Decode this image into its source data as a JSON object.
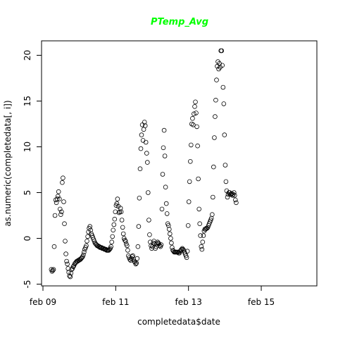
{
  "chart_data": {
    "type": "scatter",
    "title": "PTemp_Avg",
    "xlabel": "completedata$date",
    "ylabel": "as.numeric(completedata[, i])",
    "xlim": [
      9.0,
      16.75
    ],
    "ylim": [
      -5.2,
      21.5
    ],
    "x_ticks": [
      {
        "value": 9,
        "label": "feb 09"
      },
      {
        "value": 11,
        "label": "feb 11"
      },
      {
        "value": 13,
        "label": "feb 13"
      },
      {
        "value": 15,
        "label": "feb 15"
      }
    ],
    "y_ticks": [
      -5,
      0,
      5,
      10,
      15,
      20
    ],
    "title_color": "#00ff00",
    "grid": false,
    "points": [
      [
        9.23,
        -3.4
      ],
      [
        9.25,
        -3.6
      ],
      [
        9.27,
        -3.5
      ],
      [
        9.29,
        -3.4
      ],
      [
        9.31,
        -0.9
      ],
      [
        9.33,
        2.5
      ],
      [
        9.35,
        4.2
      ],
      [
        9.37,
        3.9
      ],
      [
        9.39,
        4.3
      ],
      [
        9.41,
        4.6
      ],
      [
        9.43,
        5.1
      ],
      [
        9.45,
        4.3
      ],
      [
        9.47,
        3.2
      ],
      [
        9.49,
        2.6
      ],
      [
        9.51,
        2.9
      ],
      [
        9.53,
        6.1
      ],
      [
        9.55,
        6.6
      ],
      [
        9.57,
        4.0
      ],
      [
        9.59,
        1.6
      ],
      [
        9.61,
        -0.3
      ],
      [
        9.63,
        -1.7
      ],
      [
        9.65,
        -2.5
      ],
      [
        9.67,
        -2.8
      ],
      [
        9.69,
        -3.3
      ],
      [
        9.71,
        -3.7
      ],
      [
        9.73,
        -4.1
      ],
      [
        9.75,
        -4.2
      ],
      [
        9.77,
        -3.8
      ],
      [
        9.79,
        -3.4
      ],
      [
        9.81,
        -3.3
      ],
      [
        9.83,
        -3.1
      ],
      [
        9.85,
        -3.0
      ],
      [
        9.87,
        -2.8
      ],
      [
        9.89,
        -2.7
      ],
      [
        9.91,
        -2.6
      ],
      [
        9.93,
        -2.5
      ],
      [
        9.95,
        -2.5
      ],
      [
        9.97,
        -2.4
      ],
      [
        9.99,
        -2.4
      ],
      [
        10.01,
        -2.3
      ],
      [
        10.03,
        -2.3
      ],
      [
        10.05,
        -2.2
      ],
      [
        10.07,
        -2.1
      ],
      [
        10.09,
        -2.0
      ],
      [
        10.11,
        -1.8
      ],
      [
        10.13,
        -1.5
      ],
      [
        10.15,
        -1.2
      ],
      [
        10.17,
        -1.0
      ],
      [
        10.19,
        -0.8
      ],
      [
        10.21,
        -0.3
      ],
      [
        10.23,
        0.2
      ],
      [
        10.25,
        0.7
      ],
      [
        10.27,
        1.1
      ],
      [
        10.29,
        1.3
      ],
      [
        10.31,
        0.9
      ],
      [
        10.33,
        0.5
      ],
      [
        10.35,
        0.3
      ],
      [
        10.37,
        0.1
      ],
      [
        10.39,
        -0.1
      ],
      [
        10.41,
        -0.3
      ],
      [
        10.43,
        -0.5
      ],
      [
        10.45,
        -0.6
      ],
      [
        10.47,
        -0.7
      ],
      [
        10.49,
        -0.8
      ],
      [
        10.51,
        -0.8
      ],
      [
        10.53,
        -0.9
      ],
      [
        10.55,
        -0.9
      ],
      [
        10.57,
        -1.0
      ],
      [
        10.59,
        -1.0
      ],
      [
        10.61,
        -1.0
      ],
      [
        10.63,
        -1.1
      ],
      [
        10.65,
        -1.1
      ],
      [
        10.67,
        -1.1
      ],
      [
        10.69,
        -1.2
      ],
      [
        10.71,
        -1.2
      ],
      [
        10.73,
        -1.2
      ],
      [
        10.75,
        -1.3
      ],
      [
        10.77,
        -1.3
      ],
      [
        10.79,
        -1.3
      ],
      [
        10.81,
        -1.3
      ],
      [
        10.83,
        -1.2
      ],
      [
        10.85,
        -1.1
      ],
      [
        10.87,
        -0.9
      ],
      [
        10.89,
        -0.4
      ],
      [
        10.91,
        0.2
      ],
      [
        10.93,
        0.9
      ],
      [
        10.95,
        1.5
      ],
      [
        10.97,
        2.1
      ],
      [
        10.99,
        2.9
      ],
      [
        11.01,
        3.6
      ],
      [
        11.03,
        3.8
      ],
      [
        11.05,
        4.3
      ],
      [
        11.07,
        3.5
      ],
      [
        11.09,
        2.8
      ],
      [
        11.11,
        2.9
      ],
      [
        11.13,
        3.3
      ],
      [
        11.15,
        2.9
      ],
      [
        11.17,
        2.0
      ],
      [
        11.19,
        1.2
      ],
      [
        11.21,
        0.5
      ],
      [
        11.23,
        0.0
      ],
      [
        11.25,
        -0.2
      ],
      [
        11.27,
        -0.3
      ],
      [
        11.29,
        -0.6
      ],
      [
        11.31,
        -0.8
      ],
      [
        11.33,
        -1.3
      ],
      [
        11.35,
        -1.9
      ],
      [
        11.37,
        -2.1
      ],
      [
        11.39,
        -2.3
      ],
      [
        11.41,
        -2.4
      ],
      [
        11.43,
        -2.2
      ],
      [
        11.45,
        -2.0
      ],
      [
        11.47,
        -1.9
      ],
      [
        11.49,
        -2.3
      ],
      [
        11.51,
        -2.5
      ],
      [
        11.53,
        -2.6
      ],
      [
        11.55,
        -2.8
      ],
      [
        11.57,
        -2.7
      ],
      [
        11.59,
        -2.2
      ],
      [
        11.61,
        -0.9
      ],
      [
        11.63,
        1.3
      ],
      [
        11.65,
        4.4
      ],
      [
        11.67,
        7.6
      ],
      [
        11.69,
        9.8
      ],
      [
        11.71,
        11.3
      ],
      [
        11.73,
        12.4
      ],
      [
        11.75,
        10.7
      ],
      [
        11.77,
        11.9
      ],
      [
        11.79,
        12.7
      ],
      [
        11.81,
        12.3
      ],
      [
        11.83,
        10.5
      ],
      [
        11.85,
        9.3
      ],
      [
        11.87,
        8.3
      ],
      [
        11.89,
        5.0
      ],
      [
        11.91,
        2.0
      ],
      [
        11.93,
        0.4
      ],
      [
        11.95,
        -0.4
      ],
      [
        11.97,
        -0.8
      ],
      [
        11.99,
        -1.1
      ],
      [
        12.01,
        -0.9
      ],
      [
        12.03,
        -0.5
      ],
      [
        12.05,
        -0.3
      ],
      [
        12.07,
        -0.6
      ],
      [
        12.09,
        -1.1
      ],
      [
        12.11,
        -0.9
      ],
      [
        12.13,
        -0.6
      ],
      [
        12.15,
        -0.4
      ],
      [
        12.17,
        -0.5
      ],
      [
        12.19,
        -0.6
      ],
      [
        12.21,
        -0.8
      ],
      [
        12.23,
        -0.9
      ],
      [
        12.25,
        -0.7
      ],
      [
        12.27,
        3.2
      ],
      [
        12.29,
        7.0
      ],
      [
        12.31,
        9.9
      ],
      [
        12.33,
        11.8
      ],
      [
        12.35,
        9.0
      ],
      [
        12.37,
        5.6
      ],
      [
        12.39,
        3.8
      ],
      [
        12.41,
        2.7
      ],
      [
        12.43,
        1.6
      ],
      [
        12.45,
        1.4
      ],
      [
        12.47,
        1.0
      ],
      [
        12.49,
        0.5
      ],
      [
        12.51,
        0.0
      ],
      [
        12.53,
        -0.5
      ],
      [
        12.55,
        -1.0
      ],
      [
        12.57,
        -1.3
      ],
      [
        12.59,
        -1.4
      ],
      [
        12.61,
        -1.5
      ],
      [
        12.63,
        -1.5
      ],
      [
        12.65,
        -1.5
      ],
      [
        12.67,
        -1.5
      ],
      [
        12.69,
        -1.5
      ],
      [
        12.71,
        -1.5
      ],
      [
        12.73,
        -1.6
      ],
      [
        12.75,
        -1.6
      ],
      [
        12.77,
        -1.4
      ],
      [
        12.79,
        -1.3
      ],
      [
        12.81,
        -1.2
      ],
      [
        12.83,
        -1.1
      ],
      [
        12.85,
        -1.2
      ],
      [
        12.87,
        -1.3
      ],
      [
        12.89,
        -1.5
      ],
      [
        12.91,
        -1.7
      ],
      [
        12.93,
        -1.9
      ],
      [
        12.95,
        -2.1
      ],
      [
        12.97,
        -1.4
      ],
      [
        12.99,
        1.4
      ],
      [
        13.01,
        4.0
      ],
      [
        13.03,
        6.2
      ],
      [
        13.05,
        8.4
      ],
      [
        13.07,
        10.2
      ],
      [
        13.09,
        12.5
      ],
      [
        13.11,
        13.1
      ],
      [
        13.13,
        12.4
      ],
      [
        13.15,
        13.6
      ],
      [
        13.17,
        14.4
      ],
      [
        13.19,
        14.9
      ],
      [
        13.21,
        13.7
      ],
      [
        13.23,
        12.2
      ],
      [
        13.25,
        10.1
      ],
      [
        13.27,
        6.5
      ],
      [
        13.29,
        3.2
      ],
      [
        13.31,
        1.6
      ],
      [
        13.33,
        0.3
      ],
      [
        13.35,
        -0.9
      ],
      [
        13.37,
        -1.2
      ],
      [
        13.39,
        -0.4
      ],
      [
        13.41,
        0.3
      ],
      [
        13.43,
        0.8
      ],
      [
        13.45,
        1.0
      ],
      [
        13.47,
        1.0
      ],
      [
        13.49,
        1.1
      ],
      [
        13.51,
        1.1
      ],
      [
        13.53,
        1.2
      ],
      [
        13.55,
        1.4
      ],
      [
        13.57,
        1.6
      ],
      [
        13.59,
        1.8
      ],
      [
        13.61,
        2.0
      ],
      [
        13.63,
        2.2
      ],
      [
        13.65,
        2.6
      ],
      [
        13.67,
        4.5
      ],
      [
        13.69,
        7.8
      ],
      [
        13.71,
        11.0
      ],
      [
        13.73,
        13.3
      ],
      [
        13.75,
        15.1
      ],
      [
        13.77,
        17.3
      ],
      [
        13.79,
        18.8
      ],
      [
        13.81,
        19.3
      ],
      [
        13.83,
        18.5
      ],
      [
        13.85,
        19.1
      ],
      [
        13.87,
        18.7
      ],
      [
        13.89,
        20.5
      ],
      [
        13.91,
        20.5
      ],
      [
        13.93,
        18.9
      ],
      [
        13.95,
        16.5
      ],
      [
        13.97,
        14.7
      ],
      [
        13.99,
        11.3
      ],
      [
        14.01,
        8.0
      ],
      [
        14.03,
        6.2
      ],
      [
        14.05,
        5.2
      ],
      [
        14.07,
        4.5
      ],
      [
        14.09,
        4.8
      ],
      [
        14.11,
        5.0
      ],
      [
        14.13,
        5.0
      ],
      [
        14.15,
        4.8
      ],
      [
        14.17,
        4.8
      ],
      [
        14.19,
        4.9
      ],
      [
        14.21,
        4.7
      ],
      [
        14.23,
        4.8
      ],
      [
        14.25,
        5.0
      ],
      [
        14.27,
        4.7
      ],
      [
        14.29,
        4.2
      ],
      [
        14.31,
        3.9
      ]
    ]
  }
}
